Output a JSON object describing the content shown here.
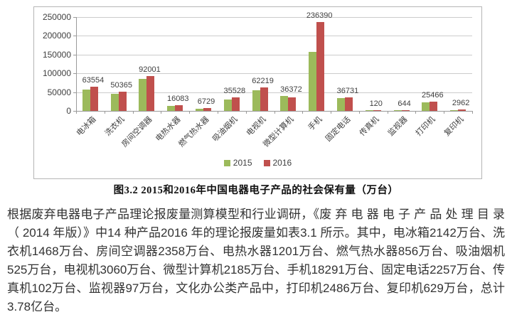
{
  "chart_data": {
    "type": "bar",
    "title": "",
    "xlabel": "",
    "ylabel": "",
    "ylim": [
      0,
      250000
    ],
    "y_ticks": [
      250000,
      200000,
      150000,
      100000,
      50000,
      0
    ],
    "grid": true,
    "legend_position": "bottom",
    "categories": [
      "电冰箱",
      "洗衣机",
      "房间空调器",
      "电热水器",
      "燃气热水器",
      "吸油烟机",
      "电视机",
      "微型计算机",
      "手机",
      "固定电话",
      "传真机",
      "监视器",
      "打印机",
      "复印机"
    ],
    "series": [
      {
        "name": "2015",
        "color": "#9cba5b",
        "values": [
          57000,
          45500,
          86000,
          14000,
          6000,
          31000,
          54000,
          39000,
          158000,
          35000,
          130,
          600,
          23000,
          2700
        ]
      },
      {
        "name": "2016",
        "color": "#c0504d",
        "values": [
          63554,
          50365,
          92001,
          16083,
          6729,
          35528,
          62219,
          36372,
          236390,
          36731,
          120,
          644,
          25466,
          2962
        ]
      }
    ],
    "bar_labels": [
      "63554",
      "50365",
      "92001",
      "16083",
      "6729",
      "35528",
      "62219",
      "36372",
      "236390",
      "36731",
      "120",
      "644",
      "25466",
      "2962"
    ],
    "legend": [
      {
        "label": "2015",
        "color": "#9cba5b"
      },
      {
        "label": "2016",
        "color": "#c0504d"
      }
    ],
    "colors": {
      "gridline": "#cccccc",
      "axis": "#9a9a9a",
      "tick_text": "#3f3f3f"
    }
  },
  "caption": "图3.2 2015和2016年中国电器电子产品的社会保有量（万台）",
  "body_text": "根据废弃电器电子产品理论报废量测算模型和行业调研，《废 弃 电 器 电 子 产 品 处 理 目 录（ 2014 年版）》中14 种产品2016 年的理论报废量如表3.1 所示。其中，电冰箱2142万台、洗衣机1468万台、房间空调器2358万台、电热水器1201万台、燃气热水器856万台、吸油烟机525万台，电视机3060万台、微型计算机2185万台、手机18291万台、固定电话2257万台、传真机102万台、监视器97万台，文化办公类产品中，打印机2486万台、复印机629万台，总计3.78亿台。"
}
